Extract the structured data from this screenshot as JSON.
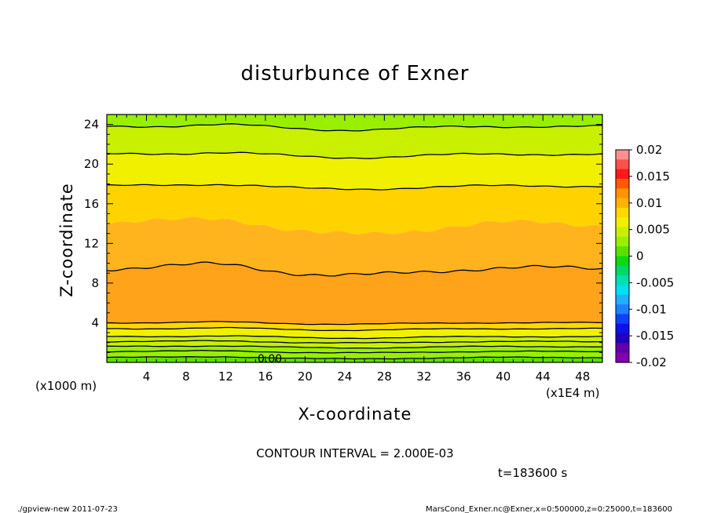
{
  "chart_data": {
    "type": "heatmap",
    "title": "disturbunce of Exner",
    "xlabel": "X-coordinate",
    "ylabel": "Z-coordinate",
    "x_unit": "(x1000 m)",
    "x_scale_note": "(x1E4 m)",
    "x_ticks": [
      4,
      8,
      12,
      16,
      20,
      24,
      28,
      32,
      36,
      40,
      44,
      48
    ],
    "y_ticks": [
      4,
      8,
      12,
      16,
      20,
      24
    ],
    "xlim": [
      0,
      50
    ],
    "ylim": [
      0,
      25
    ],
    "contour_interval_text": "CONTOUR INTERVAL = 2.000E-03",
    "contour_interval": 0.002,
    "contour_label": "0.00",
    "time_text": "t=183600 s",
    "colorbar": {
      "ticks": [
        "0.02",
        "0.015",
        "0.01",
        "0.005",
        "0",
        "-0.005",
        "-0.01",
        "-0.015",
        "-0.02"
      ],
      "range": [
        -0.02,
        0.02
      ],
      "colors": [
        "#ff9090",
        "#ff5050",
        "#ff1818",
        "#ff5a00",
        "#ff9400",
        "#ffb400",
        "#ffd800",
        "#f0f000",
        "#c8f000",
        "#98f000",
        "#5ae000",
        "#10d810",
        "#00d868",
        "#00e0b0",
        "#00e0f0",
        "#20b0ff",
        "#2080ff",
        "#1040ff",
        "#1010e8",
        "#2000c0",
        "#6000a8",
        "#8000b0"
      ]
    },
    "bands_bottom_to_top": [
      {
        "label": "0 to 0.002",
        "z_top": 0.5,
        "color": "#5ae000"
      },
      {
        "label": "0.002 to 0.004",
        "z_top": 1.6,
        "color": "#98f000"
      },
      {
        "label": "0.004 to 0.006",
        "z_top": 2.6,
        "color": "#c8f000"
      },
      {
        "label": "0.006 to 0.008",
        "z_top": 3.4,
        "color": "#f0f000"
      },
      {
        "label": "0.008 to 0.010",
        "z_top": 4.0,
        "color": "#ffd800"
      },
      {
        "label": "0.010 to 0.012",
        "z_top": 9.5,
        "color": "#ffa31a"
      },
      {
        "label": "0.008 to 0.010",
        "z_top": 14.0,
        "color": "#ffb41e"
      },
      {
        "label": "0.006 to 0.008",
        "z_top": 17.8,
        "color": "#ffd200"
      },
      {
        "label": "0.004 to 0.006",
        "z_top": 21.0,
        "color": "#f0f000"
      },
      {
        "label": "0.002 to 0.004",
        "z_top": 23.8,
        "color": "#c8f000"
      },
      {
        "label": "0 to 0.002",
        "z_top": 25.0,
        "color": "#98f000"
      }
    ],
    "contour_levels_z": [
      0.5,
      1.1,
      1.6,
      2.1,
      2.6,
      3.4,
      4.0,
      9.5,
      17.8,
      21.0,
      23.8
    ]
  },
  "footer": {
    "left": "./gpview-new   2011-07-23",
    "right": "MarsCond_Exner.nc@Exner,x=0:500000,z=0:25000,t=183600"
  }
}
